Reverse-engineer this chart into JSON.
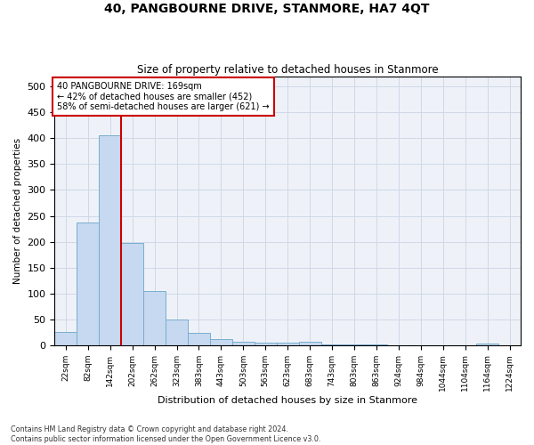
{
  "title": "40, PANGBOURNE DRIVE, STANMORE, HA7 4QT",
  "subtitle": "Size of property relative to detached houses in Stanmore",
  "xlabel": "Distribution of detached houses by size in Stanmore",
  "ylabel": "Number of detached properties",
  "footnote1": "Contains HM Land Registry data © Crown copyright and database right 2024.",
  "footnote2": "Contains public sector information licensed under the Open Government Licence v3.0.",
  "bar_labels": [
    "22sqm",
    "82sqm",
    "142sqm",
    "202sqm",
    "262sqm",
    "323sqm",
    "383sqm",
    "443sqm",
    "503sqm",
    "563sqm",
    "623sqm",
    "683sqm",
    "743sqm",
    "803sqm",
    "863sqm",
    "924sqm",
    "984sqm",
    "1044sqm",
    "1104sqm",
    "1164sqm",
    "1224sqm"
  ],
  "bar_values": [
    25,
    237,
    405,
    197,
    105,
    49,
    24,
    12,
    7,
    5,
    5,
    6,
    2,
    1,
    1,
    0,
    0,
    0,
    0,
    3,
    0
  ],
  "bar_color": "#c6d9f0",
  "bar_edge_color": "#7aadcf",
  "grid_color": "#d0d8e8",
  "ylim": [
    0,
    520
  ],
  "yticks": [
    0,
    50,
    100,
    150,
    200,
    250,
    300,
    350,
    400,
    450,
    500
  ],
  "property_line_x": 2.5,
  "property_line_color": "#cc0000",
  "annotation_text": "40 PANGBOURNE DRIVE: 169sqm\n← 42% of detached houses are smaller (452)\n58% of semi-detached houses are larger (621) →",
  "annotation_box_color": "#cc0000",
  "figsize": [
    6.0,
    5.0
  ],
  "dpi": 100
}
